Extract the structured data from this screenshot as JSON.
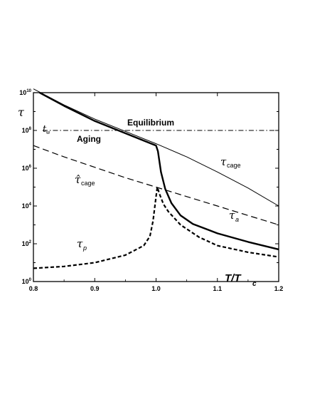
{
  "chart_data": {
    "type": "line",
    "xlabel": "T/T",
    "xlabel_sub": "c",
    "ylabel": "τ",
    "xlim": [
      0.8,
      1.2
    ],
    "ylim_log10": [
      0,
      10
    ],
    "y_scale": "log",
    "x_ticks": [
      "0.8",
      "0.9",
      "1.0",
      "1.1",
      "1.2"
    ],
    "y_ticks": [
      {
        "base": "10",
        "exp": "0",
        "value": 0
      },
      {
        "base": "10",
        "exp": "2",
        "value": 2
      },
      {
        "base": "10",
        "exp": "4",
        "value": 4
      },
      {
        "base": "10",
        "exp": "6",
        "value": 6
      },
      {
        "base": "10",
        "exp": "8",
        "value": 8
      },
      {
        "base": "10",
        "exp": "10",
        "value": 10
      }
    ],
    "grid": false,
    "annotations": {
      "equilibrium": "Equilibrium",
      "aging": "Aging",
      "tw": "t",
      "tw_sub": "w",
      "tau_cage": "τ",
      "tau_cage_sub": "cage",
      "tau_cage_hat": "τ̂",
      "tau_cage_hat_sub": "cage",
      "tau_a": "τ",
      "tau_a_sub": "a",
      "tau_p": "τ",
      "tau_p_sub": "p"
    },
    "series": [
      {
        "key": "tw",
        "style": "dash-dot",
        "x": [
          0.815,
          1.2
        ],
        "y": [
          8,
          8
        ]
      },
      {
        "key": "tau_cage",
        "style": "thin-solid",
        "x": [
          0.8,
          0.85,
          0.9,
          0.95,
          1.0,
          1.05,
          1.1,
          1.15,
          1.2
        ],
        "y": [
          10.2,
          9.35,
          8.6,
          7.95,
          7.3,
          6.6,
          5.8,
          4.95,
          4.0
        ]
      },
      {
        "key": "tau_cage_hat",
        "style": "dashed",
        "x": [
          0.8,
          0.85,
          0.9,
          0.95,
          1.0,
          1.05,
          1.1,
          1.15,
          1.2
        ],
        "y": [
          7.2,
          6.6,
          6.05,
          5.5,
          5.0,
          4.5,
          4.0,
          3.5,
          3.0
        ]
      },
      {
        "key": "tau_a",
        "style": "thick-solid",
        "x": [
          0.81,
          0.85,
          0.9,
          0.95,
          1.0,
          1.003,
          1.008,
          1.015,
          1.025,
          1.04,
          1.06,
          1.08,
          1.1,
          1.15,
          1.2
        ],
        "y": [
          10.0,
          9.3,
          8.5,
          7.85,
          7.2,
          6.9,
          5.8,
          4.9,
          4.15,
          3.5,
          3.05,
          2.8,
          2.55,
          2.1,
          1.7
        ]
      },
      {
        "key": "tau_p",
        "style": "thick-dashed",
        "x": [
          0.8,
          0.85,
          0.9,
          0.95,
          0.98,
          0.99,
          0.995,
          1.0,
          1.002,
          1.006,
          1.012,
          1.02,
          1.04,
          1.07,
          1.1,
          1.15,
          1.2
        ],
        "y": [
          0.7,
          0.8,
          1.0,
          1.4,
          1.9,
          2.4,
          3.2,
          4.5,
          5.0,
          4.6,
          4.1,
          3.7,
          3.0,
          2.35,
          1.9,
          1.55,
          1.3
        ]
      }
    ]
  }
}
